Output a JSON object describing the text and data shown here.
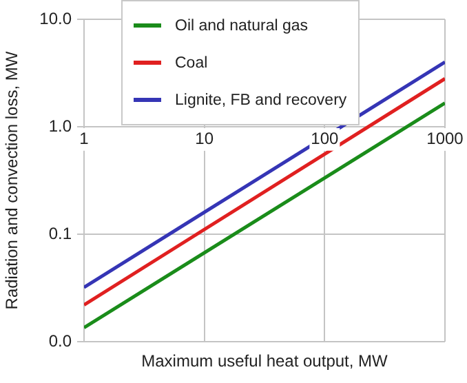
{
  "chart_data": {
    "type": "line",
    "xlabel": "Maximum useful heat output, MW",
    "ylabel": "Radiation and convection loss, MW",
    "log": "xy",
    "x": [
      1,
      1000
    ],
    "series": [
      {
        "name": "Oil and natural gas",
        "color": "#1a8c1a",
        "values": [
          0.0135,
          1.66
        ]
      },
      {
        "name": "Coal",
        "color": "#e02020",
        "values": [
          0.022,
          2.8
        ]
      },
      {
        "name": "Lignite, FB and recovery",
        "color": "#3535b5",
        "values": [
          0.032,
          4.0
        ]
      }
    ],
    "xlim": [
      1,
      1000
    ],
    "xticks": [
      1,
      10,
      100,
      1000
    ],
    "ylim": [
      0.01,
      10
    ],
    "yticks": [
      {
        "value": 0.01,
        "label": "0.0"
      },
      {
        "value": 0.1,
        "label": "0.1"
      },
      {
        "value": 1,
        "label": "1.0"
      },
      {
        "value": 10,
        "label": "10.0"
      }
    ],
    "grid": true,
    "legend": "top left",
    "marker": "none",
    "line_style": "solid"
  }
}
